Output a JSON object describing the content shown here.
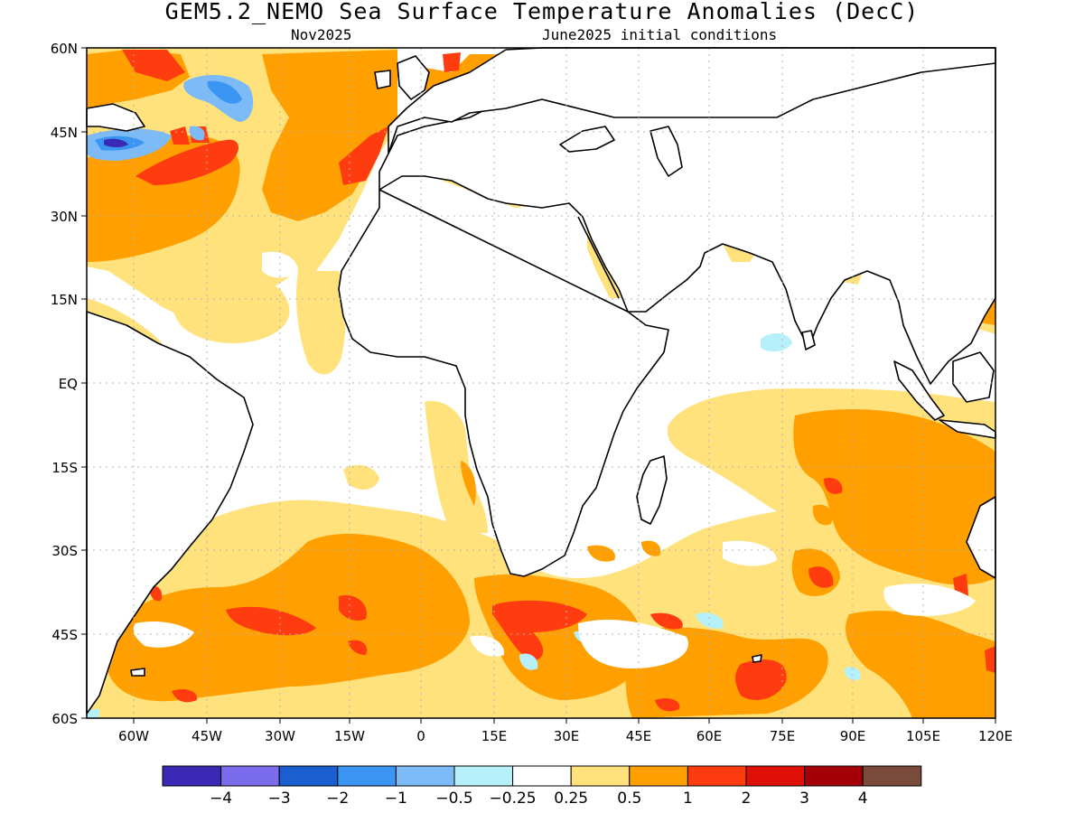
{
  "title": "GEM5.2_NEMO Sea Surface Temperature Anomalies (DecC)",
  "subtitle_left": "Nov2025",
  "subtitle_right": "June2025 initial conditions",
  "lat_labels": [
    "60N",
    "45N",
    "30N",
    "15N",
    "EQ",
    "15S",
    "30S",
    "45S",
    "60S"
  ],
  "lon_labels": [
    "60W",
    "45W",
    "30W",
    "15W",
    "0",
    "15E",
    "30E",
    "45E",
    "60E",
    "75E",
    "90E",
    "105E",
    "120E"
  ],
  "colorbar": {
    "colors": [
      "#3b28b4",
      "#7b6cec",
      "#1a5ed0",
      "#3b95f2",
      "#7cbaf8",
      "#b6f0fa",
      "#ffffff",
      "#ffe27c",
      "#ffa000",
      "#ff3c10",
      "#e01008",
      "#a30008",
      "#7a4a3c"
    ],
    "labels": [
      "−4",
      "−3",
      "−2",
      "−1",
      "−0.5",
      "−0.25",
      "0.25",
      "0.5",
      "1",
      "2",
      "3",
      "4"
    ]
  },
  "colors": {
    "anom_025_05": "#ffe27c",
    "anom_05_1": "#ffa000",
    "anom_1_2": "#ff3c10",
    "anom_neg_025": "#b6f0fa",
    "anom_neg_05": "#7cbaf8",
    "anom_neg_1": "#3b95f2",
    "anom_neg_3": "#3b28b4",
    "coastline": "#000000",
    "gridline": "#b4b4b4"
  }
}
